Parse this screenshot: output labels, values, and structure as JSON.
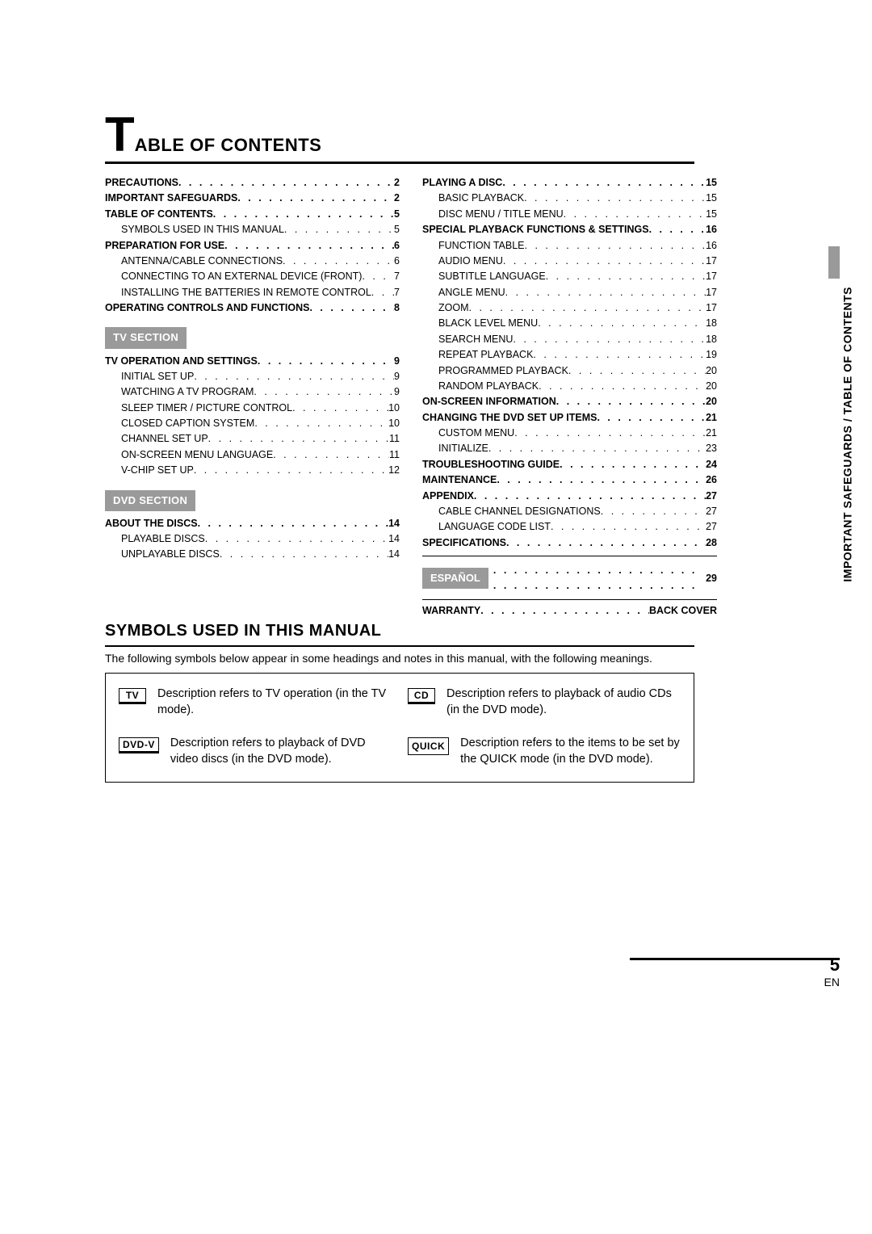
{
  "title": {
    "big": "T",
    "rest": "ABLE OF CONTENTS"
  },
  "side_tab_text": "IMPORTANT SAFEGUARDS / TABLE OF CONTENTS",
  "page_number": {
    "num": "5",
    "lang": "EN"
  },
  "col_left": [
    {
      "t": "main",
      "label": "PRECAUTIONS",
      "page": "2"
    },
    {
      "t": "main",
      "label": "IMPORTANT SAFEGUARDS",
      "page": "2"
    },
    {
      "t": "main",
      "label": "TABLE OF CONTENTS",
      "page": "5"
    },
    {
      "t": "sub",
      "label": "SYMBOLS USED IN THIS MANUAL",
      "page": "5"
    },
    {
      "t": "main",
      "label": "PREPARATION FOR USE",
      "page": "6"
    },
    {
      "t": "sub",
      "label": "ANTENNA/CABLE CONNECTIONS",
      "page": "6"
    },
    {
      "t": "sub",
      "label": "CONNECTING TO AN EXTERNAL DEVICE (FRONT)",
      "page": "7"
    },
    {
      "t": "sub",
      "label": "INSTALLING THE BATTERIES IN REMOTE CONTROL",
      "page": "7"
    },
    {
      "t": "main",
      "label": "OPERATING CONTROLS AND FUNCTIONS",
      "page": "8"
    },
    {
      "t": "section",
      "label": "TV SECTION"
    },
    {
      "t": "main",
      "label": "TV OPERATION AND SETTINGS",
      "page": "9"
    },
    {
      "t": "sub",
      "label": "INITIAL SET UP",
      "page": "9"
    },
    {
      "t": "sub",
      "label": "WATCHING A TV PROGRAM",
      "page": "9"
    },
    {
      "t": "sub",
      "label": "SLEEP TIMER / PICTURE CONTROL",
      "page": "10"
    },
    {
      "t": "sub",
      "label": "CLOSED CAPTION SYSTEM",
      "page": "10"
    },
    {
      "t": "sub",
      "label": "CHANNEL SET UP",
      "page": "11"
    },
    {
      "t": "sub",
      "label": "ON-SCREEN MENU LANGUAGE",
      "page": "11"
    },
    {
      "t": "sub",
      "label": "V-CHIP SET UP",
      "page": "12"
    },
    {
      "t": "section",
      "label": "DVD SECTION"
    },
    {
      "t": "main",
      "label": "ABOUT THE DISCS",
      "page": "14"
    },
    {
      "t": "sub",
      "label": "PLAYABLE DISCS",
      "page": "14"
    },
    {
      "t": "sub",
      "label": "UNPLAYABLE DISCS",
      "page": "14"
    }
  ],
  "col_right": [
    {
      "t": "main",
      "label": "PLAYING A DISC",
      "page": "15"
    },
    {
      "t": "sub",
      "label": "BASIC PLAYBACK",
      "page": "15"
    },
    {
      "t": "sub",
      "label": "DISC MENU / TITLE MENU",
      "page": "15"
    },
    {
      "t": "main",
      "label": "SPECIAL PLAYBACK FUNCTIONS & SETTINGS",
      "page": "16"
    },
    {
      "t": "sub",
      "label": "FUNCTION TABLE",
      "page": "16"
    },
    {
      "t": "sub",
      "label": "AUDIO MENU",
      "page": "17"
    },
    {
      "t": "sub",
      "label": "SUBTITLE LANGUAGE",
      "page": "17"
    },
    {
      "t": "sub",
      "label": "ANGLE MENU",
      "page": "17"
    },
    {
      "t": "sub",
      "label": "ZOOM",
      "page": "17"
    },
    {
      "t": "sub",
      "label": "BLACK LEVEL MENU",
      "page": "18"
    },
    {
      "t": "sub",
      "label": "SEARCH MENU",
      "page": "18"
    },
    {
      "t": "sub",
      "label": "REPEAT PLAYBACK",
      "page": "19"
    },
    {
      "t": "sub",
      "label": "PROGRAMMED PLAYBACK",
      "page": "20"
    },
    {
      "t": "sub",
      "label": "RANDOM PLAYBACK",
      "page": "20"
    },
    {
      "t": "main",
      "label": "ON-SCREEN INFORMATION",
      "page": "20"
    },
    {
      "t": "main",
      "label": "CHANGING THE DVD SET UP ITEMS",
      "page": "21"
    },
    {
      "t": "sub",
      "label": "CUSTOM MENU",
      "page": "21"
    },
    {
      "t": "sub",
      "label": "INITIALIZE",
      "page": "23"
    },
    {
      "t": "main",
      "label": "TROUBLESHOOTING GUIDE",
      "page": "24"
    },
    {
      "t": "main",
      "label": "MAINTENANCE",
      "page": "26"
    },
    {
      "t": "main",
      "label": "APPENDIX",
      "page": "27"
    },
    {
      "t": "sub",
      "label": "CABLE CHANNEL DESIGNATIONS",
      "page": "27"
    },
    {
      "t": "sub",
      "label": "LANGUAGE CODE LIST",
      "page": "27"
    },
    {
      "t": "main",
      "label": "SPECIFICATIONS",
      "page": "28"
    },
    {
      "t": "hr"
    },
    {
      "t": "espanol",
      "label": "ESPAÑOL",
      "page": "29"
    },
    {
      "t": "hr"
    },
    {
      "t": "main",
      "label": "WARRANTY",
      "page": "BACK COVER"
    }
  ],
  "symbols": {
    "title": "SYMBOLS USED IN THIS MANUAL",
    "intro": "The following symbols below appear in some headings and notes in this manual, with the following meanings.",
    "items": [
      {
        "icon": "TV",
        "text": "Description refers to TV operation (in the TV mode)."
      },
      {
        "icon": "DVD-V",
        "text": "Description refers to playback of DVD video discs (in the DVD mode)."
      },
      {
        "icon": "CD",
        "text": "Description refers to playback of audio CDs (in the DVD mode)."
      },
      {
        "icon": "QUICK",
        "plain": true,
        "text": "Description refers to the items to be set by the QUICK mode (in the DVD mode)."
      }
    ]
  }
}
